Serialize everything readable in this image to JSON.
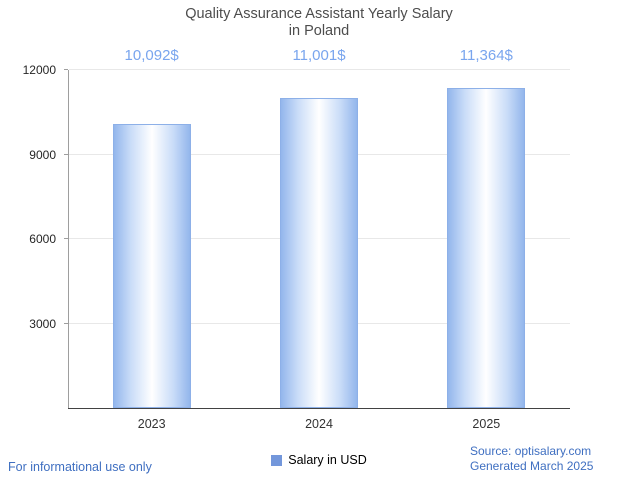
{
  "title": {
    "line1": "Quality Assurance Assistant Yearly Salary",
    "line2": "in Poland"
  },
  "chart_data": {
    "type": "bar",
    "categories": [
      "2023",
      "2024",
      "2025"
    ],
    "values": [
      10092,
      11001,
      11364
    ],
    "value_labels": [
      "10,092$",
      "11,001$",
      "11,364$"
    ],
    "series_name": "Salary in USD",
    "title": "Quality Assurance Assistant Yearly Salary in Poland",
    "xlabel": "",
    "ylabel": "",
    "ylim": [
      0,
      12000
    ],
    "yticks": [
      3000,
      6000,
      9000,
      12000
    ],
    "grid": true,
    "legend_position": "bottom-center",
    "colors": {
      "bar_edge": "#8db0e8",
      "bar_center": "#ffffff",
      "value_label": "#79a5ee",
      "legend_marker": "#7397db",
      "footer_text": "#3f6fc1"
    }
  },
  "legend": {
    "label": "Salary in USD"
  },
  "footer": {
    "left": "For informational use only",
    "source": "Source: optisalary.com",
    "generated": "Generated March 2025"
  }
}
